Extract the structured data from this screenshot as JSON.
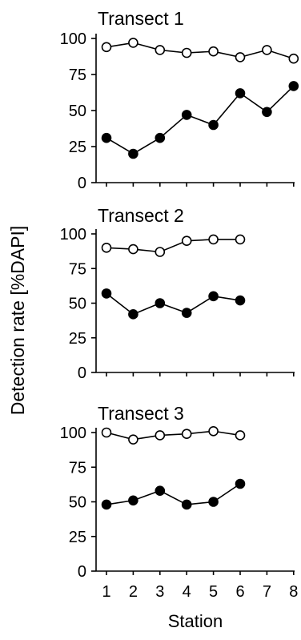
{
  "figure": {
    "ylabel": "Detection rate [%DAPI]",
    "xlabel": "Station"
  },
  "chart_data": [
    {
      "type": "line",
      "title": "Transect 1",
      "ylim": [
        0,
        100
      ],
      "yticks": [
        0,
        25,
        50,
        75,
        100
      ],
      "x": [
        1,
        2,
        3,
        4,
        5,
        6,
        7,
        8
      ],
      "series": [
        {
          "marker": "open",
          "values": [
            94,
            97,
            92,
            90,
            91,
            87,
            92,
            86
          ]
        },
        {
          "marker": "filled",
          "values": [
            31,
            20,
            31,
            47,
            40,
            62,
            49,
            67
          ]
        }
      ]
    },
    {
      "type": "line",
      "title": "Transect 2",
      "ylim": [
        0,
        100
      ],
      "yticks": [
        0,
        25,
        50,
        75,
        100
      ],
      "x": [
        1,
        2,
        3,
        4,
        5,
        6
      ],
      "series": [
        {
          "marker": "open",
          "values": [
            90,
            89,
            87,
            95,
            96,
            96
          ]
        },
        {
          "marker": "filled",
          "values": [
            57,
            42,
            50,
            43,
            55,
            52
          ]
        }
      ]
    },
    {
      "type": "line",
      "title": "Transect 3",
      "ylim": [
        0,
        100
      ],
      "yticks": [
        0,
        25,
        50,
        75,
        100
      ],
      "x": [
        1,
        2,
        3,
        4,
        5,
        6
      ],
      "xticks": [
        1,
        2,
        3,
        4,
        5,
        6,
        7,
        8
      ],
      "series": [
        {
          "marker": "open",
          "values": [
            100,
            95,
            98,
            99,
            101,
            98
          ]
        },
        {
          "marker": "filled",
          "values": [
            48,
            51,
            58,
            48,
            50,
            63
          ]
        }
      ]
    }
  ]
}
